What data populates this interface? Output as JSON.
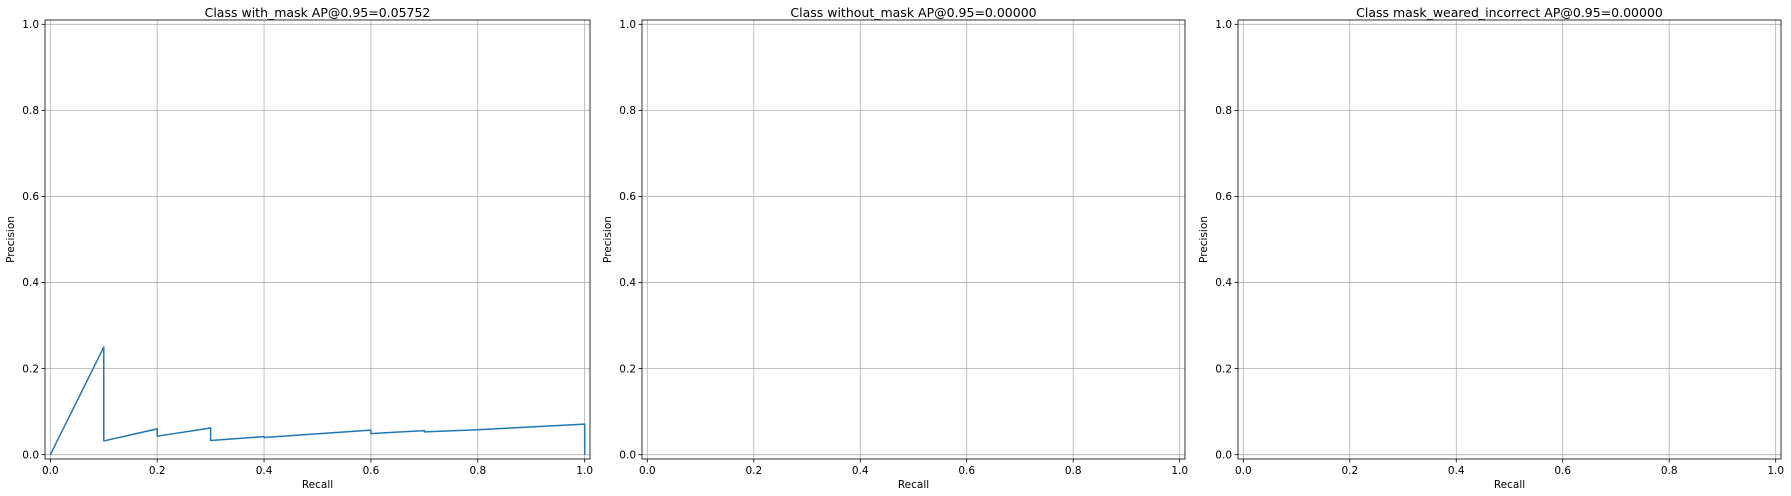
{
  "chart_data": [
    {
      "type": "line",
      "title": "Class with_mask AP@0.95=0.05752",
      "xlabel": "Recall",
      "ylabel": "Precision",
      "xlim": [
        -0.01,
        1.01
      ],
      "ylim": [
        -0.01,
        1.01
      ],
      "xticks": [
        "0.0",
        "0.2",
        "0.4",
        "0.6",
        "0.8",
        "1.0"
      ],
      "yticks": [
        "0.0",
        "0.2",
        "0.4",
        "0.6",
        "0.8",
        "1.0"
      ],
      "grid": true,
      "series": [
        {
          "color": "#1f77b4",
          "x": [
            0.0,
            0.1,
            0.1,
            0.2,
            0.2,
            0.3,
            0.3,
            0.4,
            0.4,
            0.6,
            0.6,
            0.7,
            0.7,
            0.8,
            1.0,
            1.0
          ],
          "y": [
            0.0,
            0.25,
            0.032,
            0.06,
            0.043,
            0.062,
            0.033,
            0.042,
            0.04,
            0.057,
            0.049,
            0.056,
            0.053,
            0.058,
            0.071,
            0.0
          ]
        }
      ]
    },
    {
      "type": "line",
      "title": "Class without_mask AP@0.95=0.00000",
      "xlabel": "Recall",
      "ylabel": "Precision",
      "xlim": [
        -0.01,
        1.01
      ],
      "ylim": [
        -0.01,
        1.01
      ],
      "xticks": [
        "0.0",
        "0.2",
        "0.4",
        "0.6",
        "0.8",
        "1.0"
      ],
      "yticks": [
        "0.0",
        "0.2",
        "0.4",
        "0.6",
        "0.8",
        "1.0"
      ],
      "grid": true,
      "series": []
    },
    {
      "type": "line",
      "title": "Class mask_weared_incorrect AP@0.95=0.00000",
      "xlabel": "Recall",
      "ylabel": "Precision",
      "xlim": [
        -0.01,
        1.01
      ],
      "ylim": [
        -0.01,
        1.01
      ],
      "xticks": [
        "0.0",
        "0.2",
        "0.4",
        "0.6",
        "0.8",
        "1.0"
      ],
      "yticks": [
        "0.0",
        "0.2",
        "0.4",
        "0.6",
        "0.8",
        "1.0"
      ],
      "grid": true,
      "series": []
    }
  ]
}
